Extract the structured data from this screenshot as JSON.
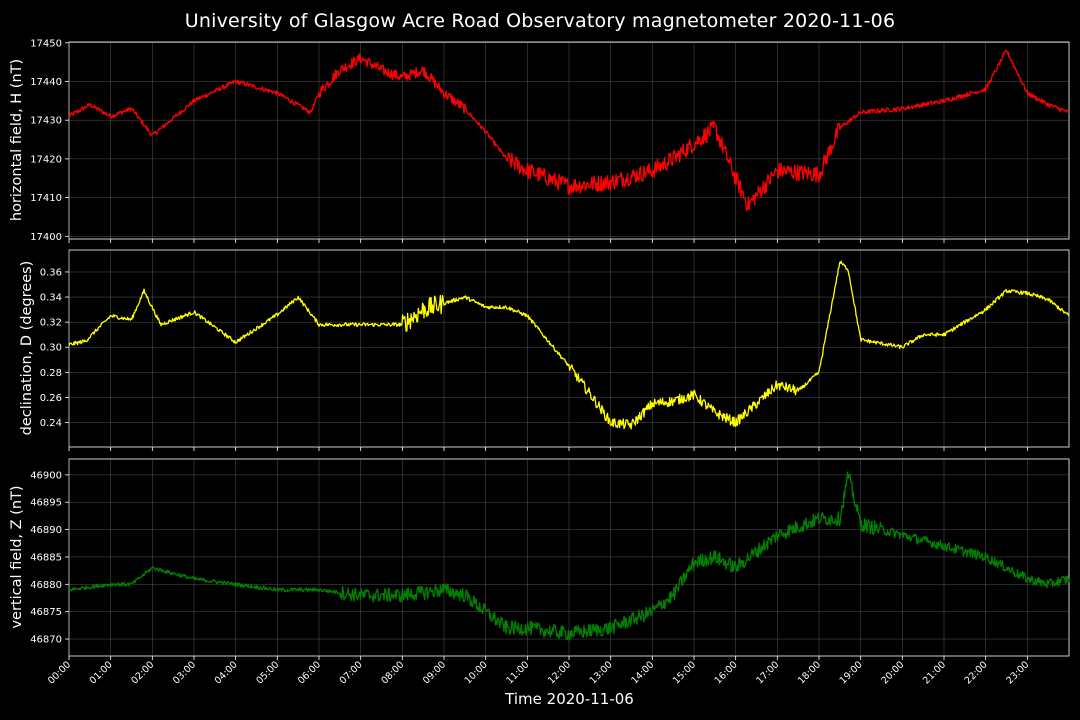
{
  "title": "University of Glasgow Acre Road Observatory magnetometer 2020-11-06",
  "xlabel": "Time 2020-11-06",
  "chart_data": [
    {
      "type": "line",
      "ylabel": "horizontal field, H (nT)",
      "color": "#ff0000",
      "ylim": [
        17399.3,
        17450.2
      ],
      "yticks": [
        17400,
        17410,
        17420,
        17430,
        17440,
        17450
      ],
      "grid": true,
      "x": [
        0,
        0.5,
        1,
        1.5,
        2,
        3,
        4,
        5,
        5.8,
        6,
        6.5,
        7,
        7.5,
        8,
        8.5,
        9,
        9.5,
        10,
        10.5,
        11,
        11.5,
        12,
        13,
        14,
        14.5,
        15,
        15.5,
        16,
        16.3,
        17,
        18,
        18.5,
        19,
        20,
        21,
        22,
        22.5,
        23,
        23.5,
        24
      ],
      "values": [
        17431,
        17434,
        17431,
        17433,
        17426,
        17435,
        17440,
        17437,
        17432,
        17437,
        17443,
        17446,
        17443,
        17441,
        17443,
        17437,
        17433,
        17427,
        17420,
        17417,
        17415,
        17413,
        17414,
        17417,
        17420,
        17424,
        17428,
        17415,
        17408,
        17417,
        17416,
        17428,
        17432,
        17433,
        17435,
        17438,
        17448,
        17437,
        17434,
        17432
      ]
    },
    {
      "type": "line",
      "ylabel": "declination, D (degrees)",
      "color": "#ffff00",
      "ylim": [
        0.2205,
        0.3775
      ],
      "yticks": [
        0.24,
        0.26,
        0.28,
        0.3,
        0.32,
        0.34,
        0.36
      ],
      "grid": true,
      "x": [
        0,
        0.4,
        1,
        1.5,
        1.8,
        2.2,
        3,
        4,
        5,
        5.5,
        6,
        7,
        8,
        8.5,
        9,
        9.5,
        10,
        10.5,
        11,
        11.5,
        12,
        12.5,
        13,
        13.5,
        14,
        14.5,
        15,
        15.5,
        16,
        16.5,
        17,
        17.5,
        18,
        18.5,
        18.7,
        19,
        19.5,
        20,
        20.5,
        21,
        21.5,
        22,
        22.5,
        23,
        23.5,
        24
      ],
      "values": [
        0.302,
        0.305,
        0.325,
        0.322,
        0.345,
        0.318,
        0.328,
        0.304,
        0.326,
        0.34,
        0.318,
        0.318,
        0.318,
        0.33,
        0.335,
        0.34,
        0.332,
        0.332,
        0.325,
        0.305,
        0.285,
        0.263,
        0.24,
        0.238,
        0.255,
        0.257,
        0.262,
        0.248,
        0.24,
        0.255,
        0.27,
        0.265,
        0.28,
        0.368,
        0.362,
        0.306,
        0.303,
        0.3,
        0.31,
        0.31,
        0.32,
        0.33,
        0.345,
        0.343,
        0.338,
        0.325
      ]
    },
    {
      "type": "line",
      "ylabel": "vertical field, Z (nT)",
      "color": "#008000",
      "ylim": [
        46866.9,
        46902.9
      ],
      "yticks": [
        46870,
        46875,
        46880,
        46885,
        46890,
        46895,
        46900
      ],
      "grid": true,
      "x": [
        0,
        1,
        1.5,
        2,
        3,
        4,
        5,
        6,
        7,
        8,
        9,
        9.5,
        10,
        10.5,
        11,
        12,
        13,
        14,
        14.5,
        15,
        15.5,
        16,
        17,
        18,
        18.5,
        18.7,
        19,
        20,
        21,
        22,
        23,
        23.5,
        24
      ],
      "values": [
        46879,
        46880,
        46880,
        46883,
        46881,
        46880,
        46879,
        46879,
        46878,
        46878,
        46879,
        46878,
        46875,
        46872,
        46872,
        46871,
        46872,
        46875,
        46878,
        46884,
        46885,
        46883,
        46889,
        46892,
        46892,
        46900,
        46891,
        46889,
        46887,
        46885,
        46881,
        46880,
        46881
      ]
    }
  ],
  "xticks": [
    "00:00",
    "01:00",
    "02:00",
    "03:00",
    "04:00",
    "05:00",
    "06:00",
    "07:00",
    "08:00",
    "09:00",
    "10:00",
    "11:00",
    "12:00",
    "13:00",
    "14:00",
    "15:00",
    "16:00",
    "17:00",
    "18:00",
    "19:00",
    "20:00",
    "21:00",
    "22:00",
    "23:00"
  ]
}
